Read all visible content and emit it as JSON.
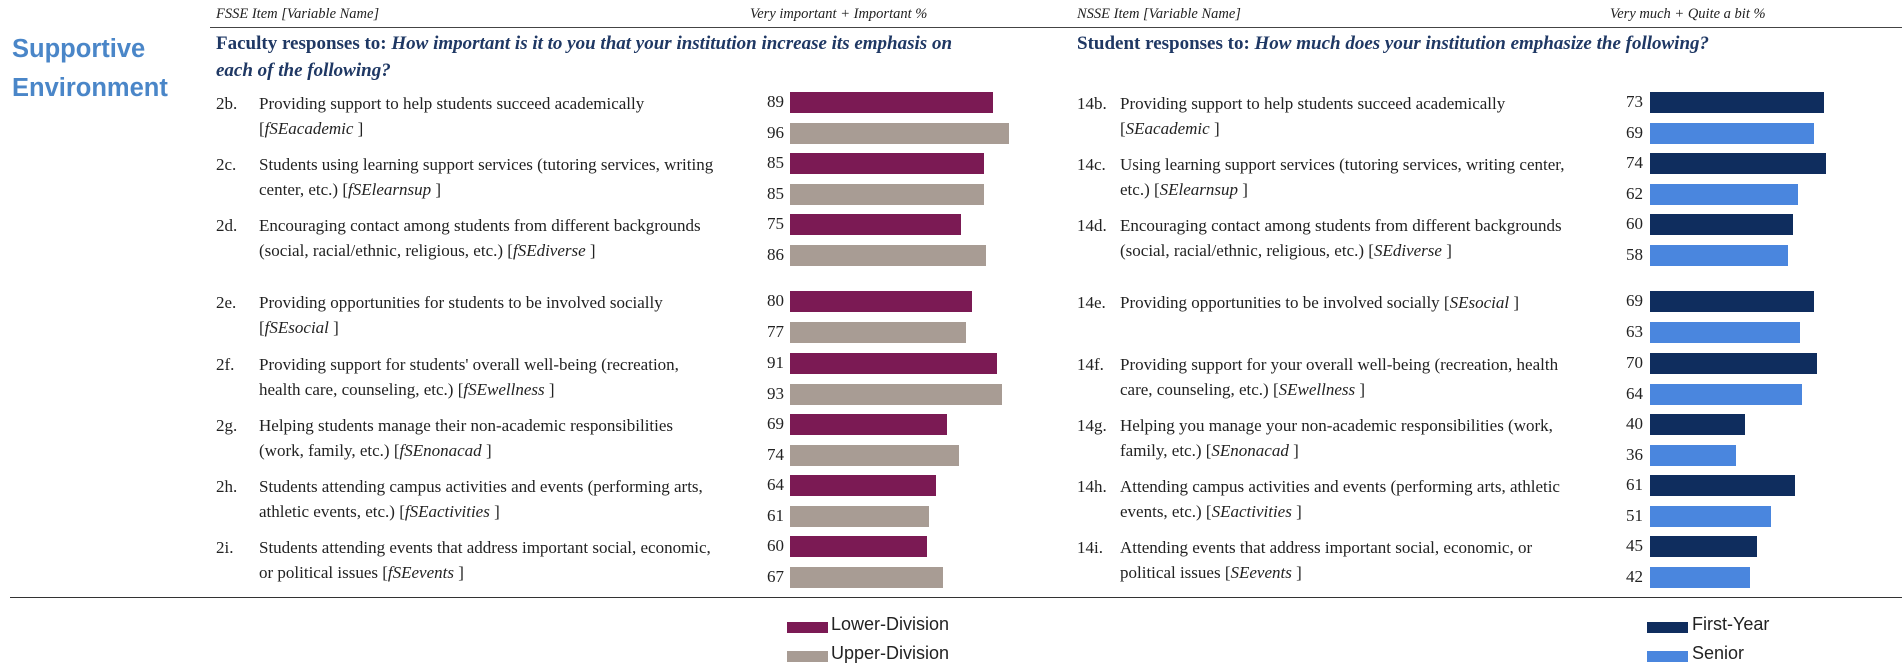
{
  "headers": {
    "fsse_item": "FSSE Item [Variable Name]",
    "fsse_pct": "Very important + Important %",
    "nsse_item": "NSSE Item [Variable Name]",
    "nsse_pct": "Very much + Quite a bit %"
  },
  "section_title": "Supportive Environment",
  "faculty_title": {
    "prefix": "Faculty responses to: ",
    "question": "How important is it to you that your institution  increase its emphasis on each of the following?"
  },
  "student_title": {
    "prefix": "Student responses to: ",
    "question": "How much does your institution emphasize the following?"
  },
  "colors": {
    "lower_division": "#7b1a54",
    "upper_division": "#a89c94",
    "first_year": "#0f2d5e",
    "senior": "#4a86de"
  },
  "legend": {
    "lower_division": "Lower-Division",
    "upper_division": "Upper-Division",
    "first_year": "First-Year",
    "senior": "Senior"
  },
  "faculty_items": [
    {
      "num": "2b.",
      "text": "Providing support to help students succeed academically",
      "var": "fSEacademic"
    },
    {
      "num": "2c.",
      "text": "Students using learning support services (tutoring services, writing center, etc.)",
      "var": "fSElearnsup"
    },
    {
      "num": "2d.",
      "text": "Encouraging contact among students from different backgrounds (social, racial/ethnic, religious, etc.)",
      "var": "fSEdiverse"
    },
    {
      "num": "2e.",
      "text": "Providing opportunities for students to be involved socially",
      "var": "fSEsocial"
    },
    {
      "num": "2f.",
      "text": "Providing support for students' overall well-being (recreation, health care, counseling, etc.)",
      "var": "fSEwellness"
    },
    {
      "num": "2g.",
      "text": "Helping students manage their non-academic responsibilities (work, family, etc.)",
      "var": "fSEnonacad"
    },
    {
      "num": "2h.",
      "text": "Students attending campus activities and events (performing arts, athletic events, etc.)",
      "var": "fSEactivities"
    },
    {
      "num": "2i.",
      "text": "Students attending events that address important social, economic, or political issues",
      "var": "fSEevents"
    }
  ],
  "student_items": [
    {
      "num": "14b.",
      "text": "Providing support to help students succeed academically",
      "var": "SEacademic"
    },
    {
      "num": "14c.",
      "text": "Using learning support services (tutoring services, writing center, etc.)",
      "var": "SElearnsup"
    },
    {
      "num": "14d.",
      "text": "Encouraging contact among students from different backgrounds (social, racial/ethnic, religious, etc.)",
      "var": "SEdiverse"
    },
    {
      "num": "14e.",
      "text": "Providing opportunities to be involved socially",
      "var": "SEsocial"
    },
    {
      "num": "14f.",
      "text": "Providing support for your overall well-being (recreation, health care, counseling, etc.)",
      "var": "SEwellness"
    },
    {
      "num": "14g.",
      "text": "Helping you manage your non-academic responsibilities (work, family, etc.)",
      "var": "SEnonacad"
    },
    {
      "num": "14h.",
      "text": "Attending campus activities and events (performing arts, athletic events, etc.)",
      "var": "SEactivities"
    },
    {
      "num": "14i.",
      "text": "Attending events that address important social, economic, or political issues",
      "var": "SEevents"
    }
  ],
  "chart_data": [
    {
      "type": "bar",
      "orientation": "horizontal",
      "categories": [
        "2b.",
        "2c.",
        "2d.",
        "2e.",
        "2f.",
        "2g.",
        "2h.",
        "2i."
      ],
      "series": [
        {
          "name": "Lower-Division",
          "values": [
            89,
            85,
            75,
            80,
            91,
            69,
            64,
            60
          ]
        },
        {
          "name": "Upper-Division",
          "values": [
            96,
            85,
            86,
            77,
            93,
            74,
            61,
            67
          ]
        }
      ],
      "xlim": [
        0,
        100
      ],
      "grid": false,
      "legend_position": "bottom"
    },
    {
      "type": "bar",
      "orientation": "horizontal",
      "categories": [
        "14b.",
        "14c.",
        "14d.",
        "14e.",
        "14f.",
        "14g.",
        "14h.",
        "14i."
      ],
      "series": [
        {
          "name": "First-Year",
          "values": [
            73,
            74,
            60,
            69,
            70,
            40,
            61,
            45
          ]
        },
        {
          "name": "Senior",
          "values": [
            69,
            62,
            58,
            63,
            64,
            36,
            51,
            42
          ]
        }
      ],
      "xlim": [
        0,
        100
      ],
      "grid": false,
      "legend_position": "bottom"
    }
  ]
}
